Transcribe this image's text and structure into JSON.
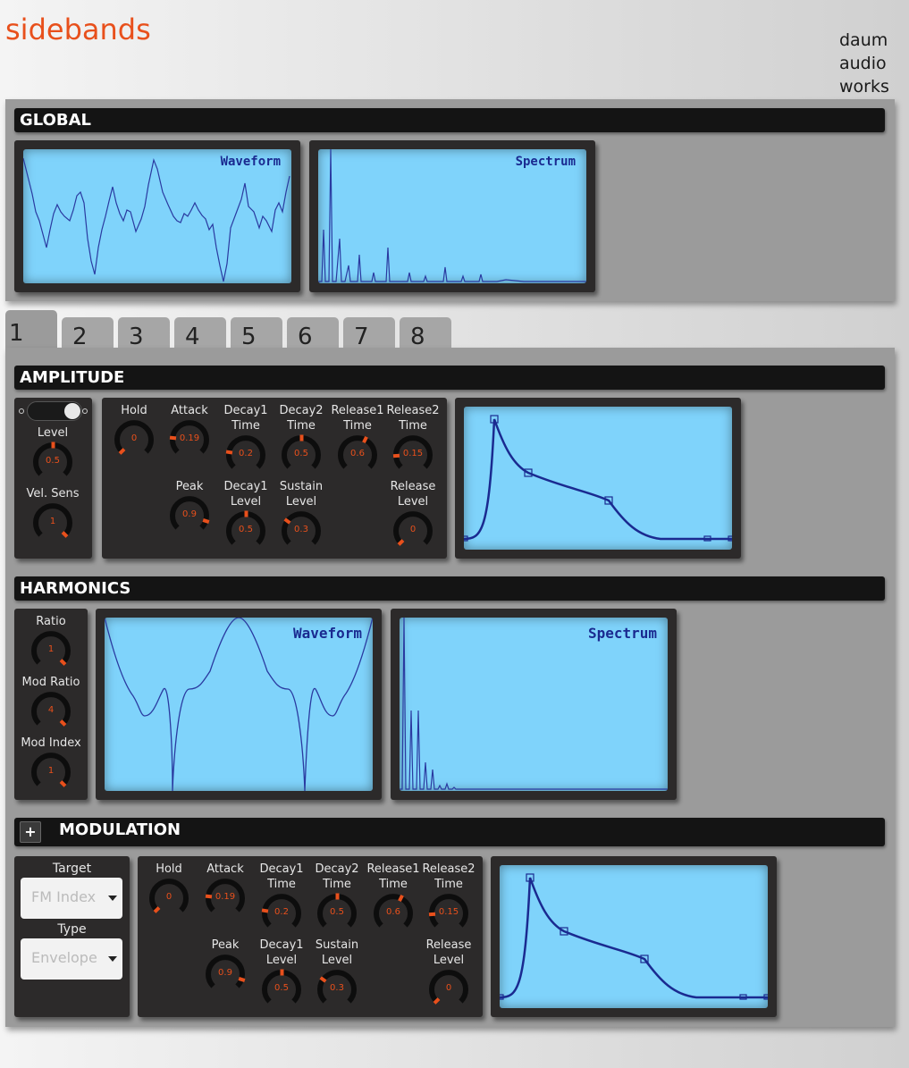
{
  "app": {
    "title": "sidebands",
    "brand": [
      "daum",
      "audio",
      "works"
    ]
  },
  "global": {
    "header": "GLOBAL",
    "waveform_label": "Waveform",
    "spectrum_label": "Spectrum"
  },
  "tabs": [
    "1",
    "2",
    "3",
    "4",
    "5",
    "6",
    "7",
    "8"
  ],
  "active_tab": "1",
  "amplitude": {
    "header": "AMPLITUDE",
    "side": [
      {
        "label": "Level",
        "value": "0.5"
      },
      {
        "label": "Vel. Sens",
        "value": "1"
      }
    ],
    "top": [
      {
        "label": "Hold",
        "value": "0"
      },
      {
        "label": "Attack",
        "value": "0.19"
      },
      {
        "label": "Decay1\nTime",
        "value": "0.2"
      },
      {
        "label": "Decay2\nTime",
        "value": "0.5"
      },
      {
        "label": "Release1\nTime",
        "value": "0.6"
      },
      {
        "label": "Release2\nTime",
        "value": "0.15"
      }
    ],
    "bottom": [
      {
        "label": "Peak",
        "value": "0.9"
      },
      {
        "label": "Decay1\nLevel",
        "value": "0.5"
      },
      {
        "label": "Sustain\nLevel",
        "value": "0.3"
      },
      {
        "label": "Release\nLevel",
        "value": "0"
      }
    ]
  },
  "harmonics": {
    "header": "HARMONICS",
    "side": [
      {
        "label": "Ratio",
        "value": "1"
      },
      {
        "label": "Mod Ratio",
        "value": "4"
      },
      {
        "label": "Mod Index",
        "value": "1"
      }
    ],
    "waveform_label": "Waveform",
    "spectrum_label": "Spectrum"
  },
  "modulation": {
    "header": "MODULATION",
    "add_label": "+",
    "target_label": "Target",
    "target_value": "FM Index",
    "type_label": "Type",
    "type_value": "Envelope",
    "top": [
      {
        "label": "Hold",
        "value": "0"
      },
      {
        "label": "Attack",
        "value": "0.19"
      },
      {
        "label": "Decay1\nTime",
        "value": "0.2"
      },
      {
        "label": "Decay2\nTime",
        "value": "0.5"
      },
      {
        "label": "Release1\nTime",
        "value": "0.6"
      },
      {
        "label": "Release2\nTime",
        "value": "0.15"
      }
    ],
    "bottom": [
      {
        "label": "Peak",
        "value": "0.9"
      },
      {
        "label": "Decay1\nLevel",
        "value": "0.5"
      },
      {
        "label": "Sustain\nLevel",
        "value": "0.3"
      },
      {
        "label": "Release\nLevel",
        "value": "0"
      }
    ]
  },
  "colors": {
    "accent": "#e8501c",
    "screen": "#7fd3fb",
    "trace": "#1a2a90",
    "panel": "#2c2a2a"
  }
}
